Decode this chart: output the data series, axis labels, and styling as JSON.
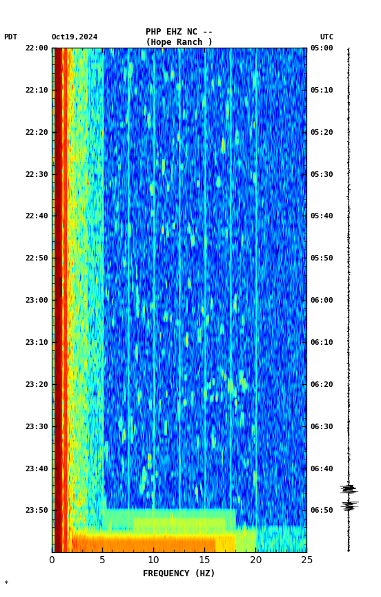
{
  "title_line1": "PHP EHZ NC --",
  "title_line2": "(Hope Ranch )",
  "date_label": "Oct19,2024",
  "left_timezone": "PDT",
  "right_timezone": "UTC",
  "left_times": [
    "22:00",
    "22:10",
    "22:20",
    "22:30",
    "22:40",
    "22:50",
    "23:00",
    "23:10",
    "23:20",
    "23:30",
    "23:40",
    "23:50"
  ],
  "right_times": [
    "05:00",
    "05:10",
    "05:20",
    "05:30",
    "05:40",
    "05:50",
    "06:00",
    "06:10",
    "06:20",
    "06:30",
    "06:40",
    "06:50"
  ],
  "freq_min": 0,
  "freq_max": 25,
  "freq_label": "FREQUENCY (HZ)",
  "time_steps": 120,
  "freq_steps": 500,
  "colormap": "jet",
  "title_fontsize": 9,
  "tick_fontsize": 8,
  "label_fontsize": 9
}
